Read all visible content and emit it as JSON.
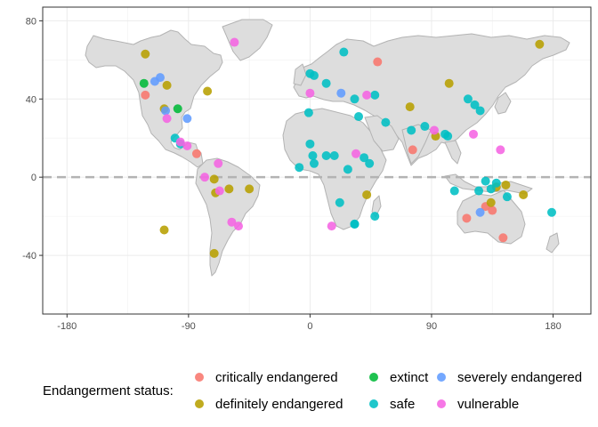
{
  "chart_data": {
    "type": "scatter",
    "projection": "longitude-latitude (equirectangular) world map",
    "xlim": [
      -198,
      208
    ],
    "ylim": [
      -70,
      87
    ],
    "x_ticks": [
      -180,
      -90,
      0,
      90,
      180
    ],
    "x_tick_labels": [
      "-180",
      "-90",
      "0",
      "90",
      "180"
    ],
    "y_ticks": [
      -40,
      0,
      40,
      80
    ],
    "y_tick_labels": [
      "-40",
      "0",
      "40",
      "80"
    ],
    "grid": true,
    "reference_line": {
      "y": 0,
      "style": "dashed",
      "color": "#b3b3b3"
    },
    "legend": {
      "title": "Endangerment status:",
      "position": "bottom",
      "entries": [
        "critically endangered",
        "definitely endangered",
        "extinct",
        "safe",
        "severely endangered",
        "vulnerable"
      ]
    },
    "colors": {
      "critically endangered": "#F8766D",
      "definitely endangered": "#B79F00",
      "extinct": "#00BA38",
      "safe": "#00BFC4",
      "severely endangered": "#619CFF",
      "vulnerable": "#F564E3"
    },
    "series": [
      {
        "name": "critically endangered",
        "points": [
          [
            -122,
            42
          ],
          [
            -84,
            12
          ],
          [
            50,
            59
          ],
          [
            76,
            14
          ],
          [
            116,
            -21
          ],
          [
            130,
            -15
          ],
          [
            135,
            -17
          ],
          [
            143,
            -31
          ]
        ]
      },
      {
        "name": "definitely endangered",
        "points": [
          [
            -122,
            63
          ],
          [
            -106,
            47
          ],
          [
            -108,
            35
          ],
          [
            -76,
            44
          ],
          [
            -70,
            -8
          ],
          [
            -71,
            -1
          ],
          [
            -60,
            -6
          ],
          [
            -45,
            -6
          ],
          [
            -71,
            -39
          ],
          [
            -108,
            -27
          ],
          [
            74,
            36
          ],
          [
            103,
            48
          ],
          [
            42,
            -9
          ],
          [
            134,
            -13
          ],
          [
            138,
            -5
          ],
          [
            145,
            -4
          ],
          [
            158,
            -9
          ],
          [
            170,
            68
          ],
          [
            93,
            21
          ]
        ]
      },
      {
        "name": "extinct",
        "points": [
          [
            -123,
            48
          ],
          [
            -98,
            35
          ]
        ]
      },
      {
        "name": "safe",
        "points": [
          [
            -100,
            20
          ],
          [
            -96,
            17
          ],
          [
            0,
            53
          ],
          [
            3,
            52
          ],
          [
            -1,
            33
          ],
          [
            0,
            17
          ],
          [
            2,
            11
          ],
          [
            -8,
            5
          ],
          [
            3,
            7
          ],
          [
            12,
            11
          ],
          [
            18,
            11
          ],
          [
            28,
            4
          ],
          [
            22,
            -13
          ],
          [
            33,
            -24
          ],
          [
            48,
            -20
          ],
          [
            33,
            40
          ],
          [
            36,
            31
          ],
          [
            40,
            10
          ],
          [
            44,
            7
          ],
          [
            56,
            28
          ],
          [
            75,
            24
          ],
          [
            85,
            26
          ],
          [
            100,
            22
          ],
          [
            102,
            21
          ],
          [
            117,
            40
          ],
          [
            122,
            37
          ],
          [
            126,
            34
          ],
          [
            125,
            -7
          ],
          [
            107,
            -7
          ],
          [
            130,
            -2
          ],
          [
            138,
            -3
          ],
          [
            134,
            -6
          ],
          [
            146,
            -10
          ],
          [
            179,
            -18
          ],
          [
            48,
            42
          ],
          [
            33,
            -24
          ],
          [
            12,
            48
          ],
          [
            25,
            64
          ]
        ]
      },
      {
        "name": "severely endangered",
        "points": [
          [
            -115,
            49
          ],
          [
            -111,
            51
          ],
          [
            -107,
            34
          ],
          [
            -91,
            30
          ],
          [
            23,
            43
          ],
          [
            126,
            -18
          ]
        ]
      },
      {
        "name": "vulnerable",
        "points": [
          [
            -106,
            30
          ],
          [
            -96,
            18
          ],
          [
            -91,
            16
          ],
          [
            -78,
            0
          ],
          [
            -68,
            7
          ],
          [
            -58,
            -23
          ],
          [
            -53,
            -25
          ],
          [
            -67,
            -7
          ],
          [
            -56,
            69
          ],
          [
            0,
            43
          ],
          [
            34,
            12
          ],
          [
            16,
            -25
          ],
          [
            42,
            42
          ],
          [
            92,
            24
          ],
          [
            121,
            22
          ],
          [
            141,
            14
          ]
        ]
      }
    ]
  }
}
